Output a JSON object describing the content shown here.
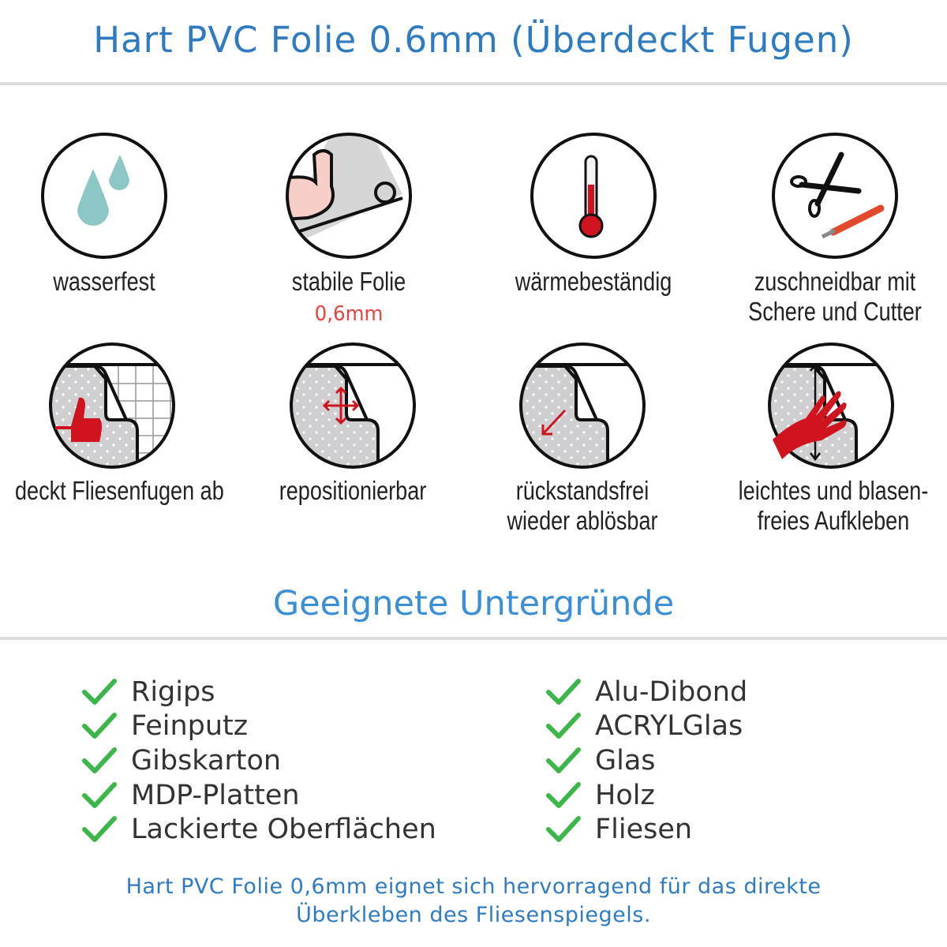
{
  "header": {
    "title": "Hart PVC Folie 0.6mm (Überdeckt Fugen)"
  },
  "features": [
    {
      "icon": "water-drops-icon",
      "label": "wasserfest"
    },
    {
      "icon": "muscle-arm-icon",
      "label": "stabile Folie",
      "sublabel": "0,6mm"
    },
    {
      "icon": "thermometer-icon",
      "label": "wärmebeständig"
    },
    {
      "icon": "scissors-cutter-icon",
      "label": "zuschneidbar mit",
      "label2": "Schere und Cutter"
    },
    {
      "icon": "thumbs-up-tiles-icon",
      "label": "deckt Fliesenfugen ab"
    },
    {
      "icon": "move-arrows-icon",
      "label": "repositionierbar"
    },
    {
      "icon": "peel-arrow-icon",
      "label": "rückstandsfrei",
      "label2": "wieder ablösbar"
    },
    {
      "icon": "hand-smooth-icon",
      "label": "leichtes und blasen-",
      "label2": "freies Aufkleben"
    }
  ],
  "surfaces": {
    "title": "Geeignete Untergründe",
    "left": [
      "Rigips",
      "Feinputz",
      "Gibskarton",
      "MDP-Platten",
      "Lackierte Oberflächen"
    ],
    "right": [
      "Alu-Dibond",
      "ACRYLGlas",
      "Glas",
      "Holz",
      "Fliesen"
    ],
    "check_color": "#3cb54a"
  },
  "footer": {
    "line1": "Hart PVC Folie 0,6mm eignet sich hervorragend für das direkte",
    "line2": "Überkleben des Fliesenspiegels."
  },
  "colors": {
    "title": "#2f7bc2",
    "heading": "#3a8fd6",
    "accent_red": "#d0141f"
  }
}
